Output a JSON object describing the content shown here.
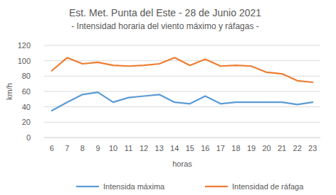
{
  "chart_data": {
    "type": "line",
    "title": "Est. Met. Punta del Este - 28 de Junio  2021",
    "subtitle": "- Intensidad horaria del viento máximo y ráfagas -",
    "x_label": "horas",
    "y_label": "km/h",
    "categories": [
      "6",
      "7",
      "8",
      "9",
      "10",
      "11",
      "12",
      "13",
      "14",
      "15",
      "16",
      "17",
      "18",
      "19",
      "20",
      "21",
      "22",
      "23"
    ],
    "series": [
      {
        "name": "Intensida máxima",
        "color": "#5b9bd5",
        "values": [
          35,
          46,
          56,
          59,
          46,
          52,
          54,
          56,
          46,
          44,
          54,
          44,
          46,
          46,
          46,
          46,
          43,
          46
        ]
      },
      {
        "name": "Intensidad de ráfaga",
        "color": "#ed7d31",
        "values": [
          87,
          104,
          96,
          98,
          94,
          93,
          94,
          96,
          104,
          94,
          102,
          93,
          94,
          93,
          85,
          83,
          74,
          72
        ]
      }
    ],
    "ylim": [
      0,
      120
    ],
    "yticks": [
      0,
      20,
      40,
      60,
      80,
      100,
      120
    ],
    "grid": true,
    "legend": "bottom"
  }
}
